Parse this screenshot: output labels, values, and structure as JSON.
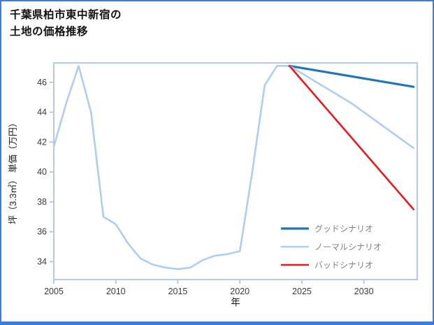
{
  "page": {
    "title_lines": [
      "千葉県柏市東中新宿の",
      "土地の価格推移"
    ],
    "border_color": "#3b7dd8",
    "background": "#ffffff"
  },
  "chart_data": {
    "type": "line",
    "title": "千葉県柏市東中新宿の土地の価格推移",
    "xlabel": "年",
    "ylabel": "坪（3.3㎡） 単価（万円）",
    "xlim": [
      2005,
      2034.3
    ],
    "ylim": [
      32.8,
      47.3
    ],
    "xticks": [
      2005,
      2010,
      2015,
      2020,
      2025,
      2030
    ],
    "yticks": [
      34,
      36,
      38,
      40,
      42,
      44,
      46
    ],
    "grid": false,
    "legend_position": "lower-right-inside",
    "frame_color": "#b7c9e2",
    "tick_color": "#b7c9e2",
    "tick_label_color": "#3a3a3a",
    "axis_label_color": "#1a1a1a",
    "legend_text_color": "#808080",
    "series": [
      {
        "id": "history",
        "label": null,
        "color": "#aecdf0",
        "width": 2.6,
        "x": [
          2005,
          2006,
          2007,
          2008,
          2009,
          2010,
          2011,
          2012,
          2013,
          2014,
          2015,
          2016,
          2017,
          2018,
          2019,
          2020,
          2021,
          2022,
          2023,
          2024
        ],
        "y": [
          41.7,
          44.6,
          47.1,
          44.0,
          37.0,
          36.5,
          35.2,
          34.2,
          33.8,
          33.6,
          33.5,
          33.6,
          34.1,
          34.4,
          34.5,
          34.7,
          40.0,
          45.8,
          47.1,
          47.1
        ]
      },
      {
        "id": "good-scenario",
        "label": "グッドシナリオ",
        "color": "#1f77b4",
        "width": 3.2,
        "x": [
          2024,
          2034
        ],
        "y": [
          47.1,
          45.7
        ]
      },
      {
        "id": "normal-scenario",
        "label": "ノーマルシナリオ",
        "color": "#aecdf0",
        "width": 2.6,
        "x": [
          2024,
          2029,
          2034
        ],
        "y": [
          47.1,
          44.6,
          41.6
        ]
      },
      {
        "id": "bad-scenario",
        "label": "バッドシナリオ",
        "color": "#e81a1d",
        "width": 2.6,
        "x": [
          2024,
          2034
        ],
        "y": [
          47.1,
          37.5
        ]
      }
    ]
  }
}
